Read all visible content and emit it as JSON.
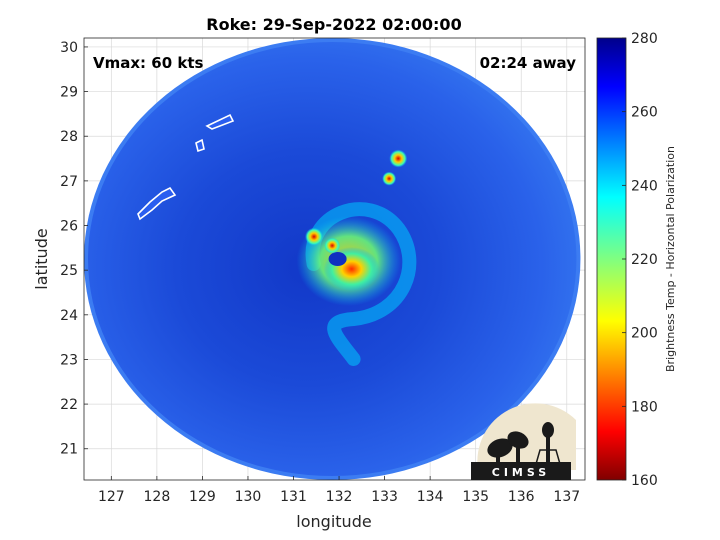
{
  "chart_data": {
    "type": "heatmap",
    "title": "Roke: 29-Sep-2022 02:00:00",
    "xlabel": "longitude",
    "ylabel": "latitude",
    "xlim": [
      126.4,
      137.4
    ],
    "ylim": [
      20.3,
      30.2
    ],
    "xticks": [
      127,
      128,
      129,
      130,
      131,
      132,
      133,
      134,
      135,
      136,
      137
    ],
    "yticks": [
      21,
      22,
      23,
      24,
      25,
      26,
      27,
      28,
      29,
      30
    ],
    "grid": true,
    "colorbar": {
      "label": "Brightness Temp - Horizontal Polarization",
      "range": [
        160,
        280
      ],
      "ticks": [
        160,
        180,
        200,
        220,
        240,
        260,
        280
      ],
      "colormap": "jet"
    },
    "annotations": {
      "vmax": "Vmax: 60 kts",
      "time_away": "02:24 away"
    },
    "storm_center": {
      "lon": 132.1,
      "lat": 25.25
    },
    "swath": {
      "center_lon": 131.85,
      "center_lat": 25.25,
      "radius_lon": 5.45,
      "radius_lat": 4.95
    },
    "features": [
      {
        "name": "inner-eyewall",
        "lon": 132.1,
        "lat": 25.25,
        "min_temp": 175
      },
      {
        "name": "convection-nw",
        "lon": 131.45,
        "lat": 25.75,
        "min_temp": 175
      },
      {
        "name": "convection-ne",
        "lon": 133.3,
        "lat": 27.5,
        "min_temp": 180
      },
      {
        "name": "convection-ne2",
        "lon": 133.1,
        "lat": 27.05,
        "min_temp": 200
      }
    ]
  },
  "logo": {
    "text": "CIMSS",
    "colors": {
      "bg": "#efe6cf",
      "ink": "#1a1a1a"
    }
  },
  "colors": {
    "background": "#1e46dc",
    "edge": "#3c7cf2",
    "coastline": "#ffffff"
  }
}
